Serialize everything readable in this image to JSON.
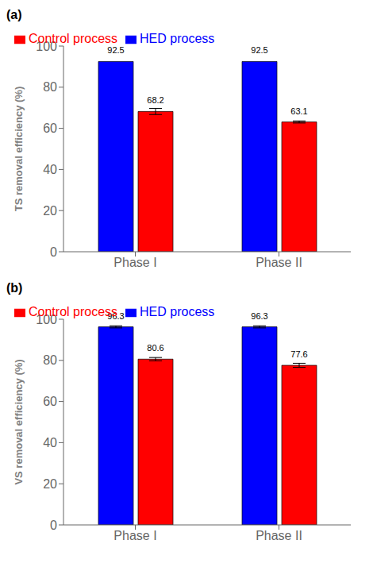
{
  "chart_data": [
    {
      "type": "bar",
      "title": "(a)",
      "y_label": "TS removal efficiency (%)",
      "categories": [
        "Phase I",
        "Phase II"
      ],
      "series": [
        {
          "name": "HED process",
          "color": "#0000FF",
          "values": [
            92.5,
            92.5
          ],
          "errors": [
            0,
            0
          ]
        },
        {
          "name": "Control process",
          "color": "#FF0000",
          "values": [
            68.2,
            63.1
          ],
          "errors": [
            1.5,
            0.5
          ]
        }
      ],
      "ylim": [
        0,
        100
      ],
      "yticks": [
        0,
        20,
        40,
        60,
        80,
        100
      ],
      "grid": false,
      "legend": "upper left",
      "data_labels": true
    },
    {
      "type": "bar",
      "title": "(b)",
      "y_label": "VS removal efficiency (%)",
      "categories": [
        "Phase I",
        "Phase II"
      ],
      "series": [
        {
          "name": "HED process",
          "color": "#0000FF",
          "values": [
            96.3,
            96.3
          ],
          "errors": [
            0.5,
            0.5
          ]
        },
        {
          "name": "Control process",
          "color": "#FF0000",
          "values": [
            80.6,
            77.6
          ],
          "errors": [
            0.8,
            1.0
          ]
        }
      ],
      "ylim": [
        0,
        100
      ],
      "yticks": [
        0,
        20,
        40,
        60,
        80,
        100
      ],
      "grid": false,
      "legend": "upper left",
      "data_labels": true
    }
  ]
}
